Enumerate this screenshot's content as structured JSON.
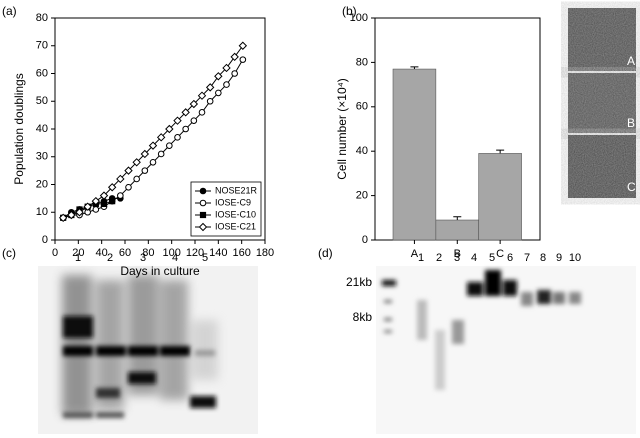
{
  "chart_data": [
    {
      "type": "line",
      "label": "(a)",
      "xlabel": "Days in culture",
      "ylabel": "Population doublings",
      "xlim": [
        0,
        180
      ],
      "xticks": [
        0,
        20,
        40,
        60,
        80,
        100,
        120,
        140,
        160,
        180
      ],
      "ylim": [
        0,
        80
      ],
      "yticks": [
        0,
        10,
        20,
        30,
        40,
        50,
        60,
        70,
        80
      ],
      "legend": "lower-right",
      "series": [
        {
          "name": "NOSE21R",
          "color": "#000000",
          "marker": "circle",
          "filled": true,
          "x": [
            7,
            14,
            21,
            28,
            35,
            42,
            49,
            56
          ],
          "values": [
            8,
            10,
            11,
            12,
            13,
            14,
            15,
            15
          ]
        },
        {
          "name": "IOSE-C9",
          "color": "#000000",
          "marker": "circle",
          "filled": false,
          "x": [
            7,
            14,
            21,
            28,
            35,
            42,
            49,
            56,
            63,
            70,
            77,
            84,
            91,
            98,
            105,
            112,
            119,
            126,
            133,
            140,
            147,
            154,
            161
          ],
          "values": [
            8,
            9,
            9,
            10,
            11,
            12,
            14,
            16,
            19,
            22,
            25,
            28,
            31,
            34,
            37,
            40,
            43,
            46,
            50,
            53,
            56,
            60,
            65
          ]
        },
        {
          "name": "IOSE-C10",
          "color": "#000000",
          "marker": "square",
          "filled": true,
          "x": [
            7,
            14,
            21,
            28,
            35,
            42,
            49
          ],
          "values": [
            8,
            9,
            11,
            12,
            13,
            13,
            14
          ]
        },
        {
          "name": "IOSE-C21",
          "color": "#000000",
          "marker": "diamond",
          "filled": false,
          "x": [
            7,
            14,
            21,
            28,
            35,
            42,
            49,
            56,
            63,
            70,
            77,
            84,
            91,
            98,
            105,
            112,
            119,
            126,
            133,
            140,
            147,
            154,
            161
          ],
          "values": [
            8,
            9,
            10,
            12,
            14,
            16,
            19,
            22,
            25,
            28,
            31,
            34,
            37,
            40,
            43,
            46,
            49,
            52,
            55,
            59,
            62,
            66,
            70
          ]
        }
      ]
    },
    {
      "type": "bar",
      "label": "(b)",
      "ylabel": "Cell number (×10⁴)",
      "color": "#a6a6a6",
      "categories": [
        "A",
        "B",
        "C"
      ],
      "values": [
        77,
        9,
        39
      ],
      "errors": [
        1,
        1.5,
        1.5
      ],
      "ylim": [
        0,
        100
      ],
      "yticks": [
        0,
        20,
        40,
        60,
        80,
        100
      ],
      "images": [
        "A",
        "B",
        "C"
      ]
    }
  ],
  "gel_c": {
    "label": "(c)",
    "lanes": [
      "1",
      "2",
      "3",
      "4",
      "5"
    ]
  },
  "gel_d": {
    "label": "(d)",
    "lanes": [
      "1",
      "2",
      "3",
      "4",
      "5",
      "6",
      "7",
      "8",
      "9",
      "10"
    ],
    "markers": [
      "21kb",
      "8kb"
    ]
  }
}
